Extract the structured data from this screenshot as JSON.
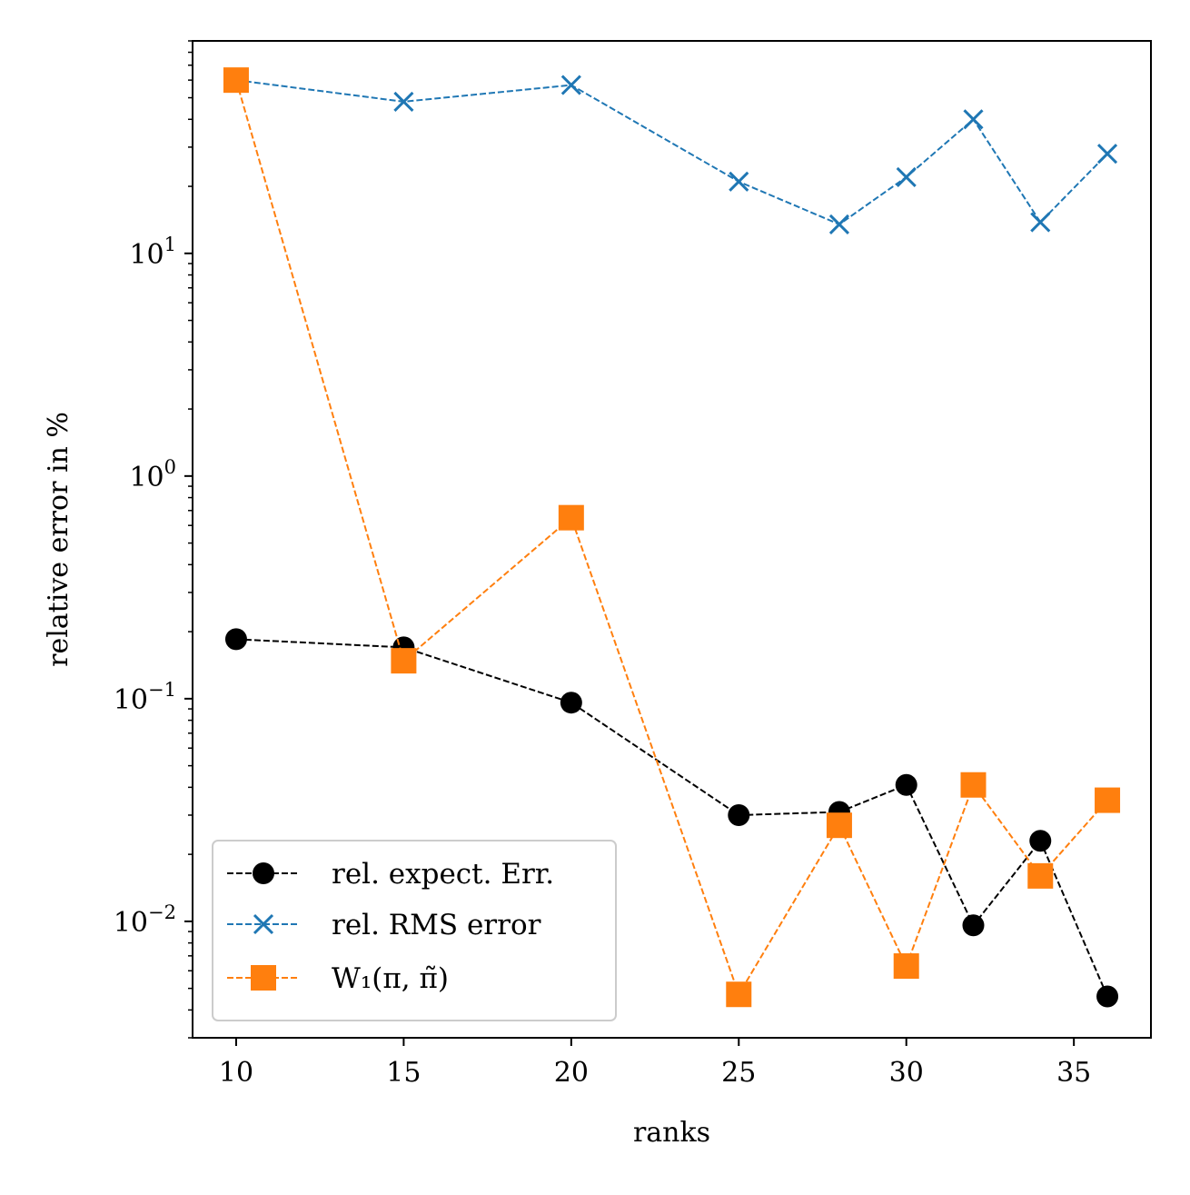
{
  "chart_data": {
    "type": "line",
    "xlabel": "ranks",
    "ylabel": "relative error in %",
    "yscale": "log",
    "xlim": [
      8.7,
      37.3
    ],
    "ylim": [
      0.003,
      90
    ],
    "x_ticks": [
      {
        "value": 10,
        "label": "10"
      },
      {
        "value": 15,
        "label": "15"
      },
      {
        "value": 20,
        "label": "20"
      },
      {
        "value": 25,
        "label": "25"
      },
      {
        "value": 30,
        "label": "30"
      },
      {
        "value": 35,
        "label": "35"
      }
    ],
    "y_ticks": [
      {
        "value": 10,
        "base": "10",
        "exp": "1"
      },
      {
        "value": 1,
        "base": "10",
        "exp": "0"
      },
      {
        "value": 0.1,
        "base": "10",
        "exp": "−1"
      },
      {
        "value": 0.01,
        "base": "10",
        "exp": "−2"
      }
    ],
    "grid": false,
    "legend_position": "bottom-left",
    "x": [
      10,
      15,
      20,
      25,
      28,
      30,
      32,
      34,
      36
    ],
    "series": [
      {
        "name": "rel. expect. Err.",
        "color": "#000000",
        "marker": "circle",
        "values": [
          0.185,
          0.17,
          0.096,
          0.03,
          0.031,
          0.041,
          0.0096,
          0.023,
          0.0046
        ]
      },
      {
        "name": "rel. RMS error",
        "color": "#1f77b4",
        "marker": "x",
        "values": [
          60,
          48,
          57,
          21,
          13.5,
          22,
          40,
          13.8,
          28
        ]
      },
      {
        "name": "W₁(π, π̃)",
        "color": "#ff7f0e",
        "marker": "square",
        "values": [
          60,
          0.148,
          0.65,
          0.0047,
          0.027,
          0.0063,
          0.041,
          0.016,
          0.035
        ]
      }
    ]
  }
}
